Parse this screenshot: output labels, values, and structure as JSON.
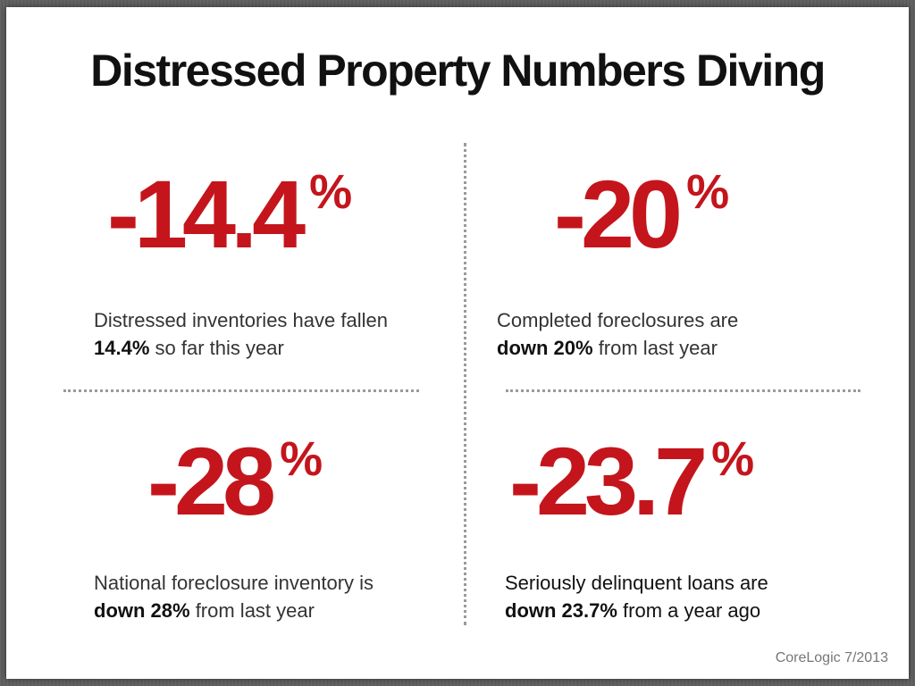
{
  "title": "Distressed Property Numbers Diving",
  "stats": [
    {
      "value": "-14.4",
      "unit": "%",
      "desc_prefix": "Distressed inventories have fallen",
      "desc_bold": "14.4%",
      "desc_suffix": " so far this year"
    },
    {
      "value": "-20",
      "unit": "%",
      "desc_prefix": "Completed foreclosures are",
      "desc_bold": "down 20%",
      "desc_suffix": " from last year"
    },
    {
      "value": "-28",
      "unit": "%",
      "desc_prefix": "National foreclosure inventory is",
      "desc_bold": "down 28%",
      "desc_suffix": " from last year"
    },
    {
      "value": "-23.7",
      "unit": "%",
      "desc_prefix": "Seriously delinquent loans are",
      "desc_bold": "down 23.7%",
      "desc_suffix": " from a year ago"
    }
  ],
  "source": "CoreLogic 7/2013",
  "colors": {
    "accent": "#c4151c",
    "text": "#333333"
  }
}
